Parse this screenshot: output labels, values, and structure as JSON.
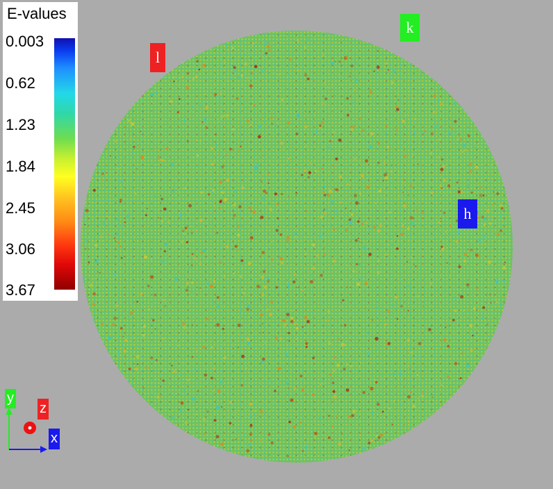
{
  "legend": {
    "title": "E-values",
    "ticks": [
      "0.003",
      "0.62",
      "1.23",
      "1.84",
      "2.45",
      "3.06",
      "3.67"
    ],
    "colormap": [
      "#1010b0",
      "#1e90ff",
      "#22d8e8",
      "#6fdd50",
      "#ffff20",
      "#ff8a14",
      "#e00808",
      "#900000"
    ]
  },
  "lattice_labels": {
    "l": "l",
    "k": "k",
    "h": "h",
    "colors": {
      "l": "#ee2222",
      "k": "#22ee22",
      "h": "#1a1aee"
    }
  },
  "axes": {
    "x": "x",
    "y": "y",
    "z": "z",
    "colors": {
      "x": "#1a1aee",
      "y": "#22ee22",
      "z": "#ee2222"
    }
  },
  "disc": {
    "base_color": "#6cc266"
  }
}
